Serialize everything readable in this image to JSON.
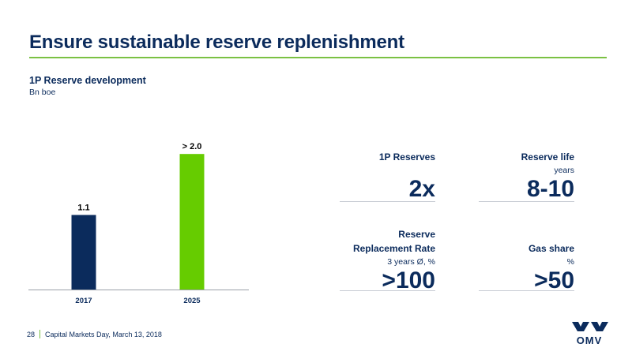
{
  "slide": {
    "title": "Ensure sustainable reserve replenishment",
    "page_number": "28",
    "footer_text": "Capital Markets Day, March 13, 2018",
    "logo_text": "OMV",
    "colors": {
      "navy": "#0b2b5c",
      "green": "#66cc00",
      "rule": "#7bc143"
    }
  },
  "chart_data": {
    "type": "bar",
    "title": "1P Reserve development",
    "unit": "Bn boe",
    "categories": [
      "2017",
      "2025"
    ],
    "values": [
      1.1,
      2.0
    ],
    "data_labels": [
      "1.1",
      "> 2.0"
    ],
    "colors": [
      "#0b2b5c",
      "#66cc00"
    ],
    "ylim": [
      0,
      2.2
    ],
    "grid": false
  },
  "kpis": [
    {
      "label": "1P Reserves",
      "sub": "",
      "value": "2x"
    },
    {
      "label": "Reserve life",
      "sub": "years",
      "value": "8-10"
    },
    {
      "label": "Reserve\nReplacement Rate",
      "sub": "3 years Ø, %",
      "value": ">100"
    },
    {
      "label": "Gas share",
      "sub": "%",
      "value": ">50"
    }
  ]
}
